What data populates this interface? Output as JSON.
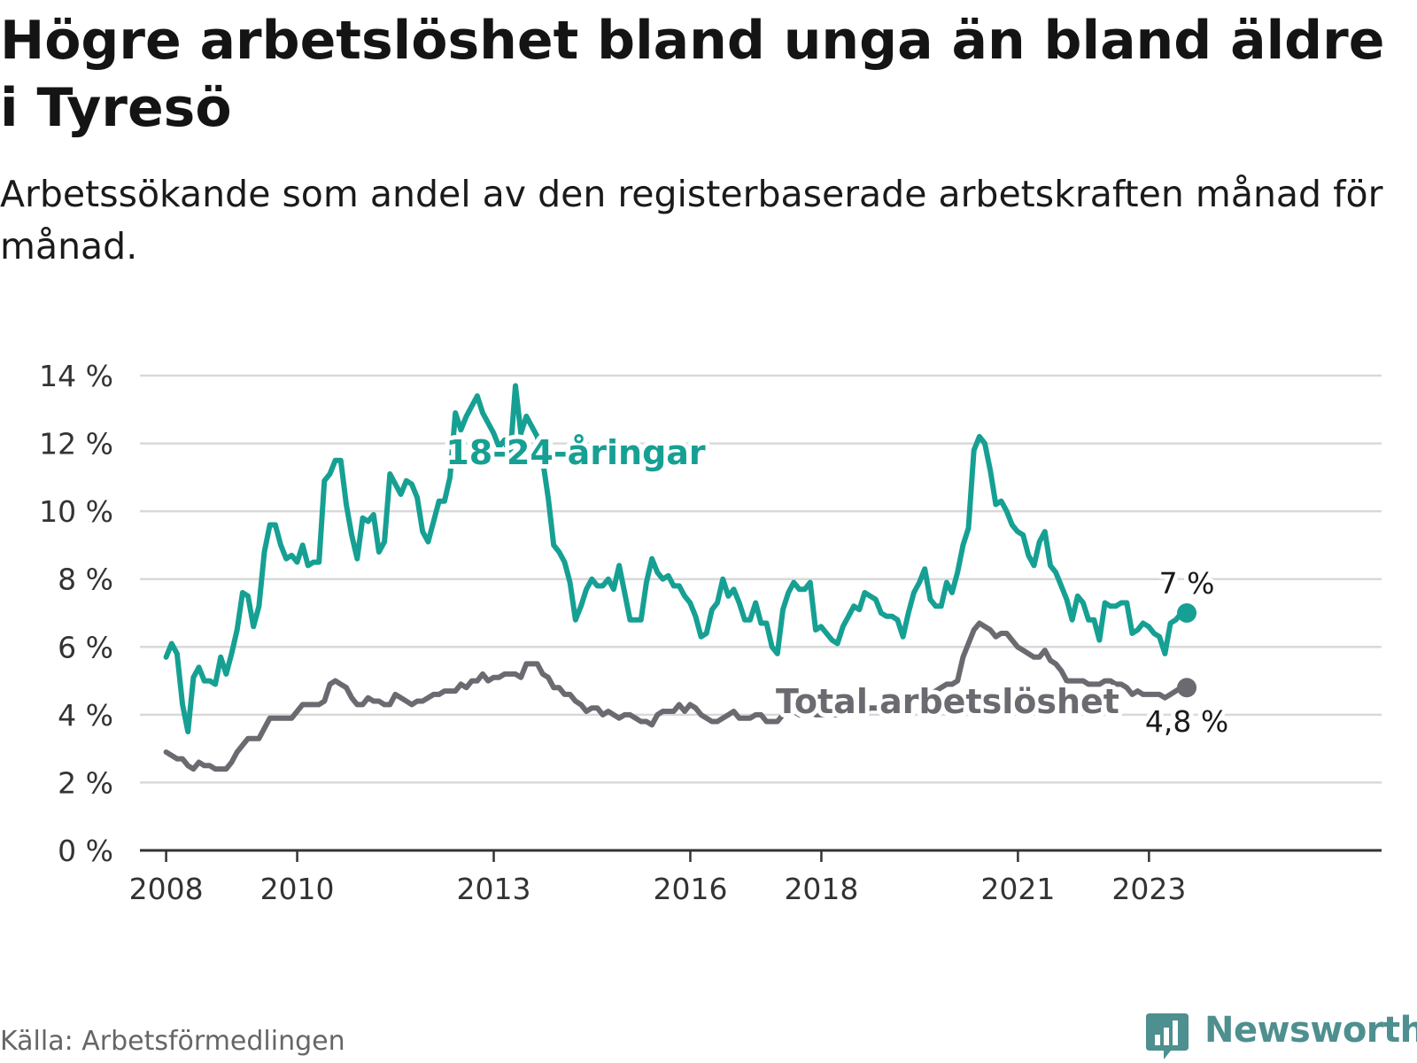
{
  "title": "Högre arbetslöshet bland unga än bland äldre i Tyresö",
  "subtitle": "Arbetssökande som andel av den registerbaserade arbetskraften månad för månad.",
  "source": "Källa: Arbetsförmedlingen",
  "brand": "Newsworthy",
  "colors": {
    "youth": "#16a093",
    "total": "#6b6a70",
    "grid": "#d9d9d9",
    "axis": "#333333",
    "brand": "#4e8f8f"
  },
  "chart_data": {
    "type": "line",
    "y_tick_labels": [
      "0 %",
      "2 %",
      "4 %",
      "6 %",
      "8 %",
      "10 %",
      "12 %",
      "14 %"
    ],
    "y_ticks": [
      0,
      2,
      4,
      6,
      8,
      10,
      12,
      14
    ],
    "ylim": [
      0,
      14
    ],
    "xlim": [
      2007.6,
      2026.55
    ],
    "x_ticks": [
      2008,
      2010,
      2013,
      2016,
      2018,
      2021,
      2023
    ],
    "x_tick_labels": [
      "2008",
      "2010",
      "2013",
      "2016",
      "2018",
      "2021",
      "2023"
    ],
    "series": [
      {
        "name": "18-24-åringar",
        "label": "18-24-åringar",
        "end_label": "7 %",
        "color": "#16a093",
        "x_start": 2008.0,
        "x_step": 0.0833,
        "values": [
          5.7,
          6.1,
          5.8,
          4.3,
          3.5,
          5.1,
          5.4,
          5.0,
          5.0,
          4.9,
          5.7,
          5.2,
          5.8,
          6.5,
          7.6,
          7.5,
          6.6,
          7.2,
          8.8,
          9.6,
          9.6,
          9.0,
          8.6,
          8.7,
          8.5,
          9.0,
          8.4,
          8.5,
          8.5,
          10.9,
          11.1,
          11.5,
          11.5,
          10.2,
          9.3,
          8.6,
          9.8,
          9.7,
          9.9,
          8.8,
          9.1,
          11.1,
          10.8,
          10.5,
          10.9,
          10.8,
          10.4,
          9.4,
          9.1,
          9.7,
          10.3,
          10.3,
          11.0,
          12.9,
          12.4,
          12.8,
          13.1,
          13.4,
          12.9,
          12.6,
          12.3,
          11.9,
          12.1,
          11.6,
          13.7,
          12.3,
          12.8,
          12.5,
          12.2,
          11.5,
          10.4,
          9.0,
          8.8,
          8.5,
          7.9,
          6.8,
          7.2,
          7.7,
          8.0,
          7.8,
          7.8,
          8.0,
          7.7,
          8.4,
          7.6,
          6.8,
          6.8,
          6.8,
          7.9,
          8.6,
          8.2,
          8.0,
          8.1,
          7.8,
          7.8,
          7.5,
          7.3,
          6.9,
          6.3,
          6.4,
          7.1,
          7.3,
          8.0,
          7.5,
          7.7,
          7.3,
          6.8,
          6.8,
          7.3,
          6.7,
          6.7,
          6.0,
          5.8,
          7.1,
          7.6,
          7.9,
          7.7,
          7.7,
          7.9,
          6.5,
          6.6,
          6.4,
          6.2,
          6.1,
          6.6,
          6.9,
          7.2,
          7.1,
          7.6,
          7.5,
          7.4,
          7.0,
          6.9,
          6.9,
          6.8,
          6.3,
          7.0,
          7.6,
          7.9,
          8.3,
          7.4,
          7.2,
          7.2,
          7.9,
          7.6,
          8.2,
          9.0,
          9.5,
          11.8,
          12.2,
          12.0,
          11.2,
          10.2,
          10.3,
          10.0,
          9.6,
          9.4,
          9.3,
          8.7,
          8.4,
          9.1,
          9.4,
          8.4,
          8.2,
          7.8,
          7.4,
          6.8,
          7.5,
          7.3,
          6.8,
          6.8,
          6.2,
          7.3,
          7.2,
          7.2,
          7.3,
          7.3,
          6.4,
          6.5,
          6.7,
          6.6,
          6.4,
          6.3,
          5.8,
          6.7,
          6.8,
          7.0,
          7.0
        ]
      },
      {
        "name": "Total arbetslöshet",
        "label": "Total arbetslöshet",
        "end_label": "4,8 %",
        "color": "#6b6a70",
        "x_start": 2008.0,
        "x_step": 0.0833,
        "values": [
          2.9,
          2.8,
          2.7,
          2.7,
          2.5,
          2.4,
          2.6,
          2.5,
          2.5,
          2.4,
          2.4,
          2.4,
          2.6,
          2.9,
          3.1,
          3.3,
          3.3,
          3.3,
          3.6,
          3.9,
          3.9,
          3.9,
          3.9,
          3.9,
          4.1,
          4.3,
          4.3,
          4.3,
          4.3,
          4.4,
          4.9,
          5.0,
          4.9,
          4.8,
          4.5,
          4.3,
          4.3,
          4.5,
          4.4,
          4.4,
          4.3,
          4.3,
          4.6,
          4.5,
          4.4,
          4.3,
          4.4,
          4.4,
          4.5,
          4.6,
          4.6,
          4.7,
          4.7,
          4.7,
          4.9,
          4.8,
          5.0,
          5.0,
          5.2,
          5.0,
          5.1,
          5.1,
          5.2,
          5.2,
          5.2,
          5.1,
          5.5,
          5.5,
          5.5,
          5.2,
          5.1,
          4.8,
          4.8,
          4.6,
          4.6,
          4.4,
          4.3,
          4.1,
          4.2,
          4.2,
          4.0,
          4.1,
          4.0,
          3.9,
          4.0,
          4.0,
          3.9,
          3.8,
          3.8,
          3.7,
          4.0,
          4.1,
          4.1,
          4.1,
          4.3,
          4.1,
          4.3,
          4.2,
          4.0,
          3.9,
          3.8,
          3.8,
          3.9,
          4.0,
          4.1,
          3.9,
          3.9,
          3.9,
          4.0,
          4.0,
          3.8,
          3.8,
          3.8,
          4.0,
          4.1,
          4.1,
          4.0,
          4.1,
          4.2,
          4.0,
          4.0,
          4.0,
          4.0,
          4.0,
          4.1,
          4.2,
          4.2,
          4.2,
          4.1,
          4.2,
          4.2,
          4.2,
          4.3,
          4.2,
          4.1,
          4.2,
          4.4,
          4.5,
          4.6,
          4.8,
          4.6,
          4.7,
          4.8,
          4.9,
          4.9,
          5.0,
          5.7,
          6.1,
          6.5,
          6.7,
          6.6,
          6.5,
          6.3,
          6.4,
          6.4,
          6.2,
          6.0,
          5.9,
          5.8,
          5.7,
          5.7,
          5.9,
          5.6,
          5.5,
          5.3,
          5.0,
          5.0,
          5.0,
          5.0,
          4.9,
          4.9,
          4.9,
          5.0,
          5.0,
          4.9,
          4.9,
          4.8,
          4.6,
          4.7,
          4.6,
          4.6,
          4.6,
          4.6,
          4.5,
          4.6,
          4.7,
          4.8,
          4.8
        ]
      }
    ]
  }
}
